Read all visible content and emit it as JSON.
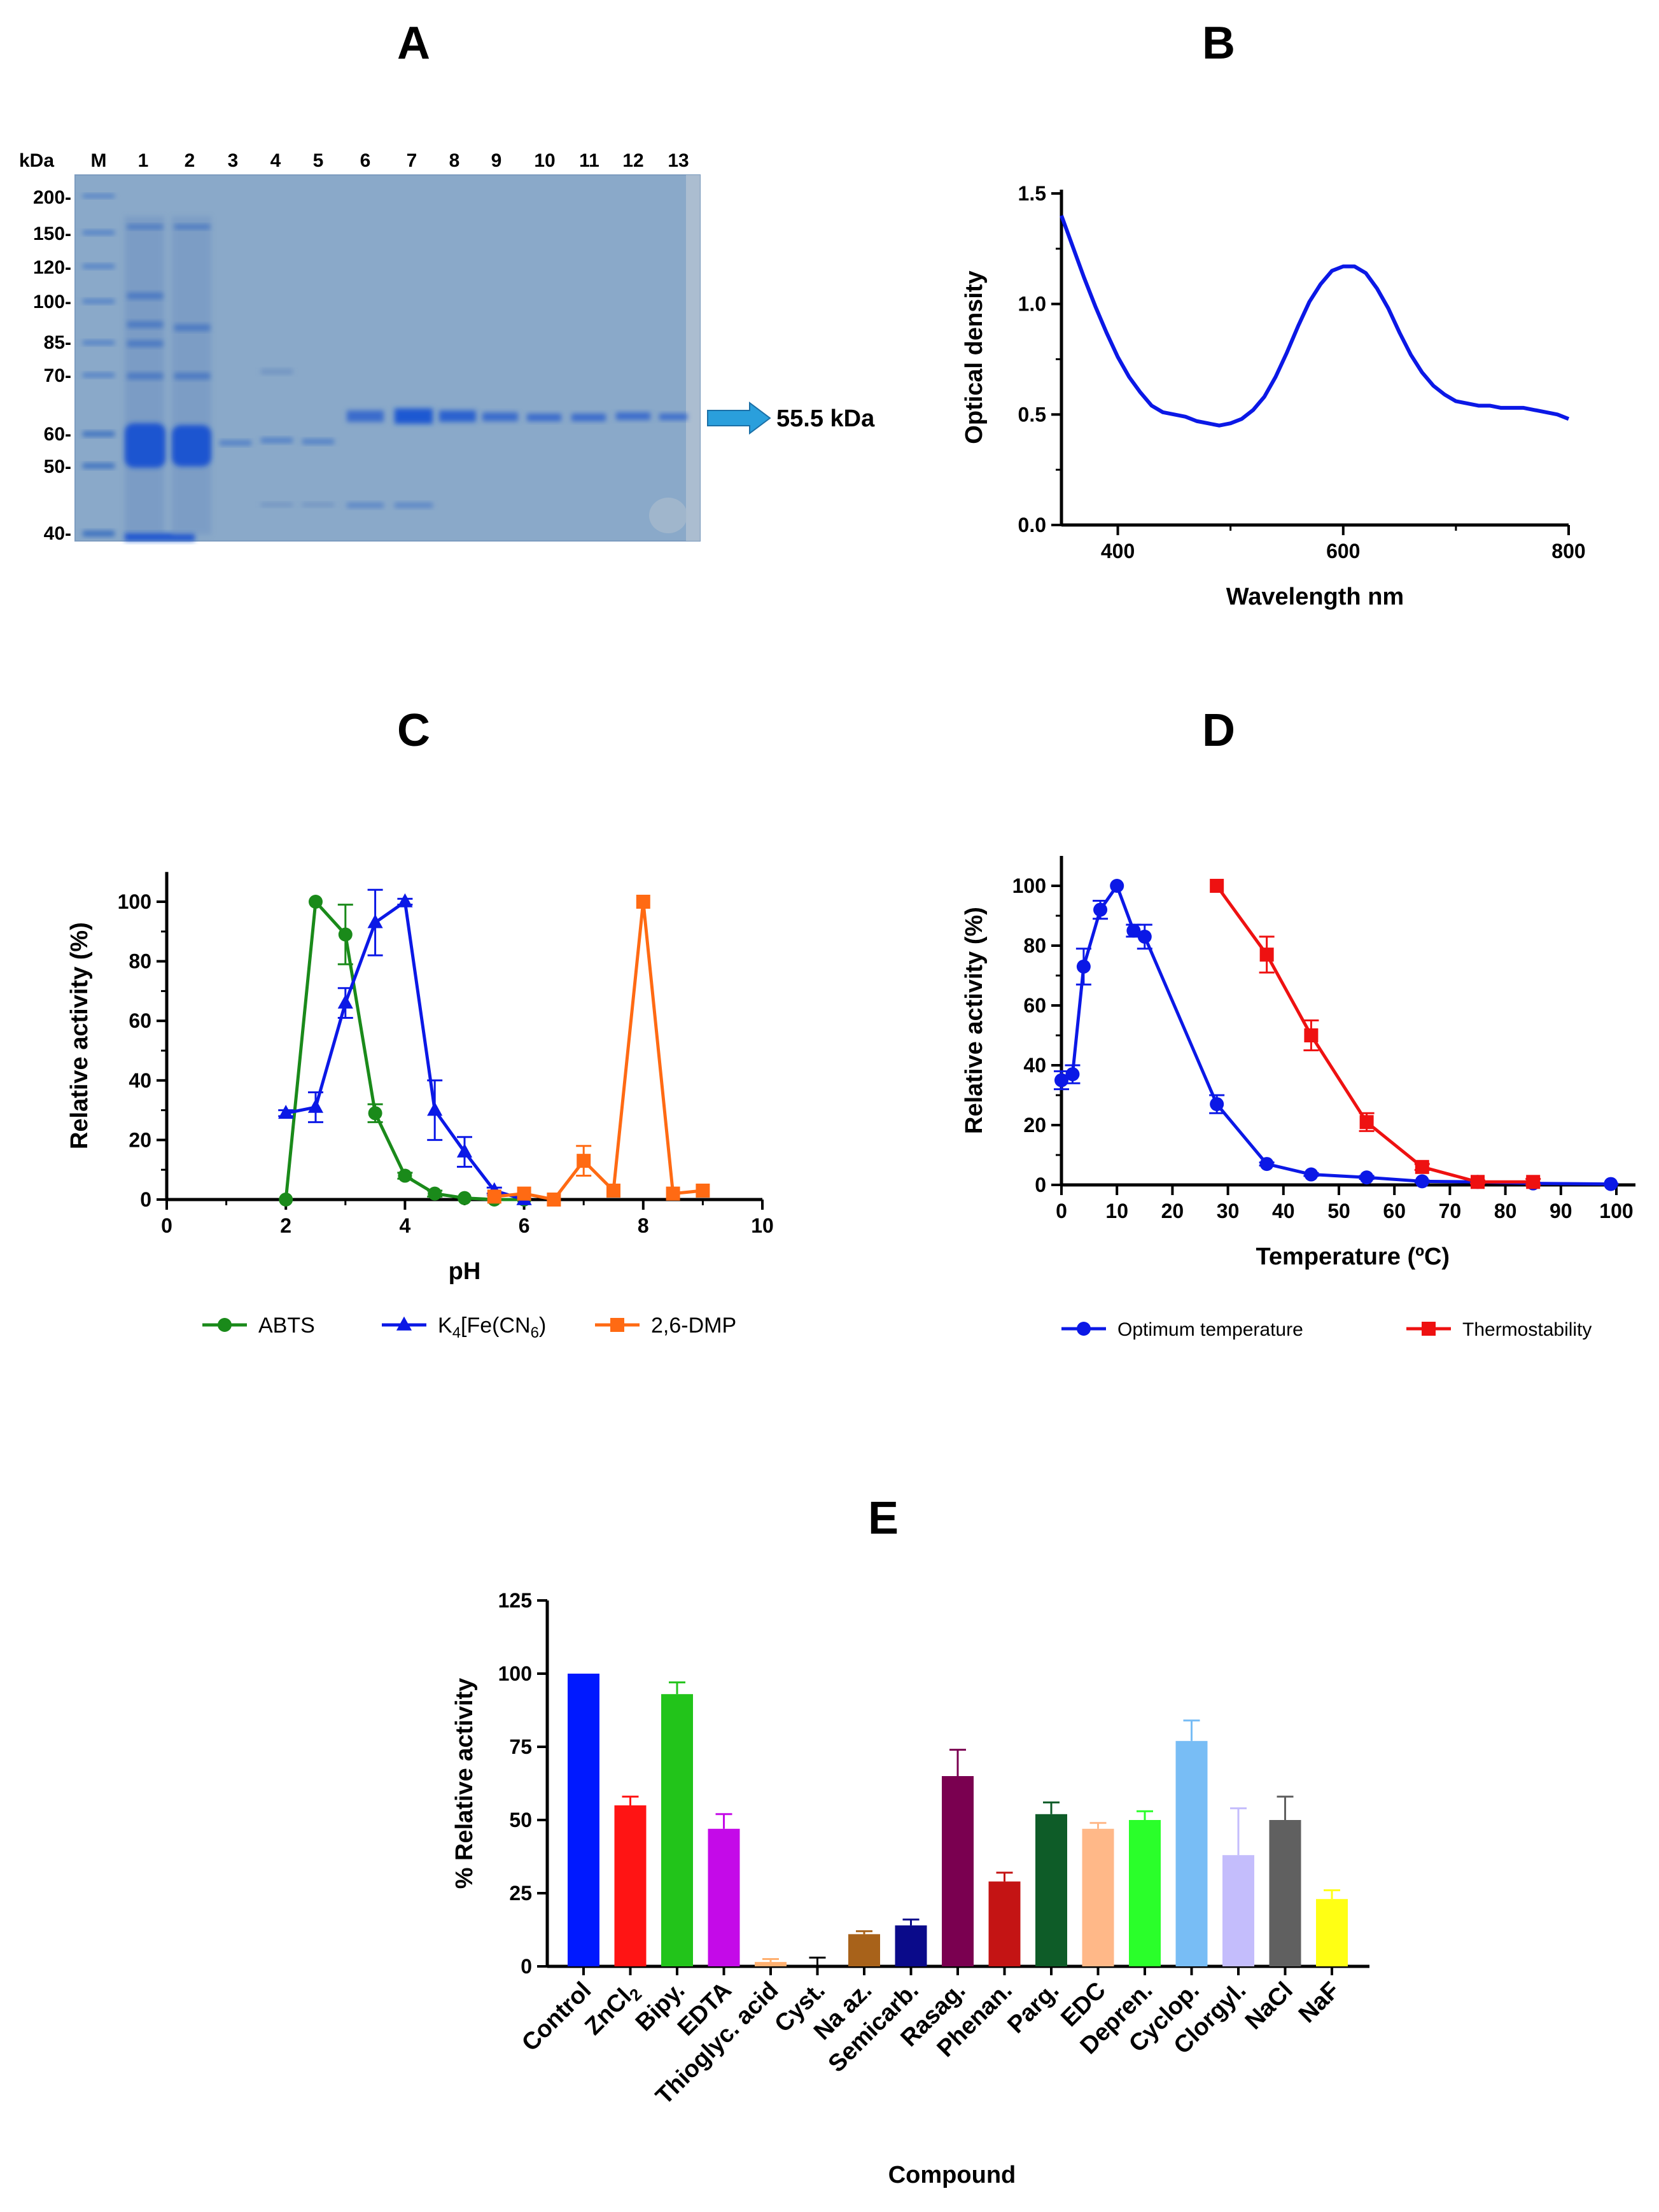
{
  "colors": {
    "green": "#1a8a1a",
    "blue": "#0b18e6",
    "orange": "#ff6a13",
    "red": "#ee1111",
    "gel_bg": "#8aa9c9",
    "band": "#2f64c8",
    "arrow": "#2a9fdc"
  },
  "panels": {
    "A": {
      "letter": "A",
      "header_kda": "kDa",
      "header_marker": "M",
      "lanes": [
        "1",
        "2",
        "3",
        "4",
        "5",
        "6",
        "7",
        "8",
        "9",
        "10",
        "11",
        "12",
        "13"
      ],
      "markers": [
        "200-",
        "150-",
        "120-",
        "100-",
        "85-",
        "70-",
        "60-",
        "50-",
        "40-"
      ],
      "arrow_label": "55.5 kDa"
    },
    "B": {
      "letter": "B"
    },
    "C": {
      "letter": "C"
    },
    "D": {
      "letter": "D"
    },
    "E": {
      "letter": "E"
    }
  },
  "chart_data": [
    {
      "id": "B",
      "type": "line",
      "xlabel": "Wavelength nm",
      "ylabel": "Optical density",
      "xlim": [
        350,
        800
      ],
      "ylim": [
        0,
        1.5
      ],
      "xticks": [
        400,
        600,
        800
      ],
      "yticks": [
        0.0,
        0.5,
        1.0,
        1.5
      ],
      "ytick_labels": [
        "0.0",
        "0.5",
        "1.0",
        "1.5"
      ],
      "series": [
        {
          "name": "Optical density",
          "color": "#0b18e6",
          "x": [
            350,
            360,
            370,
            380,
            390,
            400,
            410,
            420,
            430,
            440,
            450,
            460,
            470,
            480,
            490,
            500,
            510,
            520,
            530,
            540,
            550,
            560,
            570,
            580,
            590,
            600,
            610,
            620,
            630,
            640,
            650,
            660,
            670,
            680,
            690,
            700,
            710,
            720,
            730,
            740,
            750,
            760,
            770,
            780,
            790,
            800
          ],
          "y": [
            1.4,
            1.26,
            1.12,
            0.99,
            0.87,
            0.76,
            0.67,
            0.6,
            0.54,
            0.51,
            0.5,
            0.49,
            0.47,
            0.46,
            0.45,
            0.46,
            0.48,
            0.52,
            0.58,
            0.67,
            0.78,
            0.9,
            1.01,
            1.09,
            1.15,
            1.17,
            1.17,
            1.14,
            1.07,
            0.98,
            0.87,
            0.77,
            0.69,
            0.63,
            0.59,
            0.56,
            0.55,
            0.54,
            0.54,
            0.53,
            0.53,
            0.53,
            0.52,
            0.51,
            0.5,
            0.48
          ]
        }
      ]
    },
    {
      "id": "C",
      "type": "line",
      "xlabel": "pH",
      "ylabel": "Relative activity (%)",
      "xlim": [
        0,
        10
      ],
      "ylim": [
        0,
        110
      ],
      "xticks": [
        0,
        2,
        4,
        6,
        8,
        10
      ],
      "yticks": [
        0,
        20,
        40,
        60,
        80,
        100
      ],
      "series": [
        {
          "name": "ABTS",
          "color": "#1a8a1a",
          "marker": "circle",
          "x": [
            2,
            2.5,
            3,
            3.5,
            4,
            4.5,
            5,
            5.5,
            6
          ],
          "y": [
            0,
            100,
            89,
            29,
            8,
            2,
            0.5,
            0,
            0
          ],
          "err": [
            0,
            0,
            10,
            3,
            1,
            1,
            0,
            0,
            0
          ]
        },
        {
          "name": "K4[Fe(CN6)",
          "color": "#0b18e6",
          "marker": "triangle",
          "x": [
            2,
            2.5,
            3,
            3.5,
            4,
            4.5,
            5,
            5.5,
            6
          ],
          "y": [
            29,
            31,
            66,
            93,
            100,
            30,
            16,
            3,
            0
          ],
          "err": [
            1,
            5,
            5,
            11,
            1,
            10,
            5,
            1,
            0
          ]
        },
        {
          "name": "2,6-DMP",
          "color": "#ff6a13",
          "marker": "square",
          "x": [
            5.5,
            6,
            6.5,
            7,
            7.5,
            8,
            8.5,
            9
          ],
          "y": [
            1,
            2,
            0,
            13,
            3,
            100,
            2,
            3
          ],
          "err": [
            0,
            0,
            0,
            5,
            0,
            0,
            0,
            0
          ]
        }
      ],
      "legend": [
        {
          "main": "ABTS"
        },
        {
          "main": "K",
          "sub1": "4",
          "mid": "[Fe(CN",
          "sub2": "6",
          "end": ")"
        },
        {
          "main": "2,6-DMP"
        }
      ]
    },
    {
      "id": "D",
      "type": "line",
      "xlabel": "Temperature (ºC)",
      "ylabel": "Relative activity (%)",
      "xlim": [
        0,
        105
      ],
      "ylim": [
        0,
        110
      ],
      "xticks": [
        0,
        10,
        20,
        30,
        40,
        50,
        60,
        70,
        80,
        90,
        100
      ],
      "yticks": [
        0,
        20,
        40,
        60,
        80,
        100
      ],
      "series": [
        {
          "name": "Optimum temperature",
          "color": "#0b18e6",
          "marker": "circle",
          "x": [
            0,
            2,
            4,
            7,
            10,
            13,
            15,
            28,
            37,
            45,
            55,
            65,
            75,
            85,
            99
          ],
          "y": [
            35,
            37,
            73,
            92,
            100,
            85,
            83,
            27,
            7,
            3.5,
            2.5,
            1.2,
            1,
            0.5,
            0.3
          ],
          "err": [
            3,
            3,
            6,
            3,
            0,
            2,
            4,
            3,
            0.5,
            0.5,
            0.5,
            0.3,
            0.2,
            0.2,
            0.1
          ]
        },
        {
          "name": "Thermostability",
          "color": "#ee1111",
          "marker": "square",
          "x": [
            28,
            37,
            45,
            55,
            65,
            75,
            85
          ],
          "y": [
            100,
            77,
            50,
            21,
            6,
            1,
            1
          ],
          "err": [
            0,
            6,
            5,
            3,
            1,
            0.5,
            1
          ]
        }
      ],
      "legend": [
        "Optimum temperature",
        "Thermostability"
      ]
    },
    {
      "id": "E",
      "type": "bar",
      "xlabel": "Compound",
      "ylabel": "% Relative activity",
      "ylim": [
        0,
        125
      ],
      "yticks": [
        0,
        25,
        50,
        75,
        100,
        125
      ],
      "categories": [
        "Control",
        "ZnCl",
        "Bipy.",
        "EDTA",
        "Thioglyc. acid",
        "Cyst.",
        "Na az.",
        "Semicarb.",
        "Rasag.",
        "Phenan.",
        "Parg.",
        "EDC",
        "Depren.",
        "Cyclop.",
        "Clorgyl.",
        "NaCl",
        "NaF"
      ],
      "category_subscripts": {
        "ZnCl": "2"
      },
      "values": [
        100,
        55,
        93,
        47,
        1.5,
        0,
        11,
        14,
        65,
        29,
        52,
        47,
        50,
        77,
        38,
        50,
        23
      ],
      "err": [
        0,
        3,
        4,
        5,
        1,
        3,
        1,
        2,
        9,
        3,
        4,
        2,
        3,
        7,
        16,
        8,
        3
      ],
      "bar_colors": [
        "#0019ff",
        "#ff1414",
        "#22c41a",
        "#c40ae8",
        "#ffb070",
        "#ffffff",
        "#a8621a",
        "#0a0a8a",
        "#7a0050",
        "#c41414",
        "#0e5c28",
        "#ffb888",
        "#2aff2a",
        "#78bdf5",
        "#c4bdfc",
        "#606060",
        "#ffff14"
      ]
    }
  ]
}
